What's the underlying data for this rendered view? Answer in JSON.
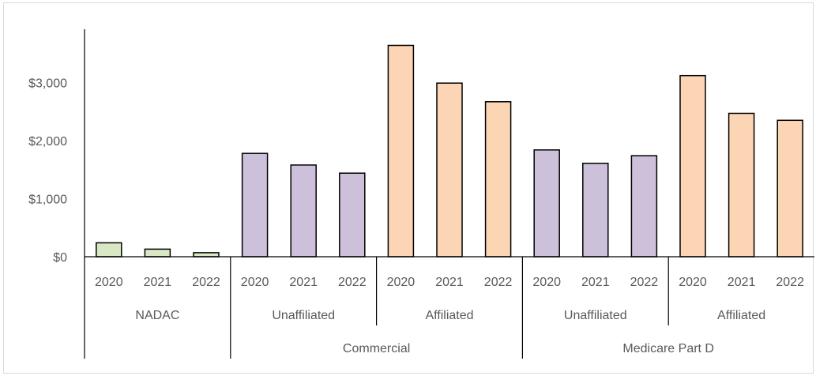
{
  "chart_data": {
    "type": "bar",
    "ylim": [
      0,
      3500
    ],
    "y_ticks": [
      0,
      1000,
      2000,
      3000
    ],
    "y_tick_labels": [
      "$0",
      "$1,000",
      "$2,000",
      "$3,000"
    ],
    "grid": false,
    "legend": "none",
    "colors": {
      "nadac": "#d9e7c5",
      "unaffiliated": "#ccc0da",
      "affiliated": "#fcd5b4",
      "bar_outline": "#000000",
      "axis": "#000000",
      "text": "#595959"
    },
    "groups": [
      {
        "label": "NADAC",
        "parent": null,
        "color_key": "nadac",
        "categories": [
          "2020",
          "2021",
          "2022"
        ],
        "values": [
          240,
          130,
          70
        ]
      },
      {
        "label": "Unaffiliated",
        "parent": "Commercial",
        "color_key": "unaffiliated",
        "categories": [
          "2020",
          "2021",
          "2022"
        ],
        "values": [
          1780,
          1580,
          1440
        ]
      },
      {
        "label": "Affiliated",
        "parent": "Commercial",
        "color_key": "affiliated",
        "categories": [
          "2020",
          "2021",
          "2022"
        ],
        "values": [
          3640,
          2990,
          2670
        ]
      },
      {
        "label": "Unaffiliated",
        "parent": "Medicare Part D",
        "color_key": "unaffiliated",
        "categories": [
          "2020",
          "2021",
          "2022"
        ],
        "values": [
          1840,
          1610,
          1740
        ]
      },
      {
        "label": "Affiliated",
        "parent": "Medicare Part D",
        "color_key": "affiliated",
        "categories": [
          "2020",
          "2021",
          "2022"
        ],
        "values": [
          3120,
          2470,
          2350
        ]
      }
    ],
    "parents": [
      "Commercial",
      "Medicare Part D"
    ]
  }
}
